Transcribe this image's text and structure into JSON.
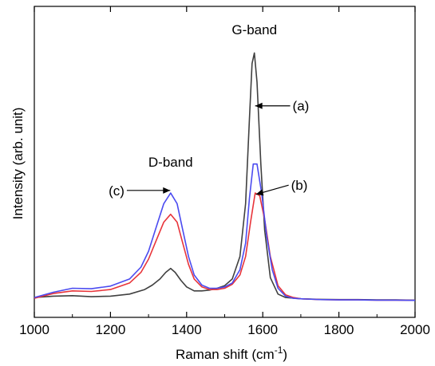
{
  "chart_data": {
    "type": "line",
    "title": "",
    "xlabel": "Raman shift (cm",
    "xlabel_sup": "-1",
    "xlabel_close": ")",
    "ylabel": "Intensity (arb. unit)",
    "xlim": [
      1000,
      2000
    ],
    "ylim": [
      0,
      1
    ],
    "xticks": [
      1000,
      1200,
      1400,
      1600,
      1800,
      2000
    ],
    "grid": false,
    "series": [
      {
        "label": "(a)",
        "color": "#404040",
        "x": [
          1000,
          1050,
          1100,
          1150,
          1200,
          1250,
          1290,
          1310,
          1330,
          1345,
          1358,
          1370,
          1385,
          1400,
          1420,
          1440,
          1460,
          1480,
          1500,
          1520,
          1540,
          1555,
          1565,
          1572,
          1578,
          1585,
          1595,
          1605,
          1620,
          1640,
          1660,
          1700,
          1750,
          1800,
          1850,
          1900,
          1950,
          2000
        ],
        "y": [
          0.045,
          0.05,
          0.052,
          0.048,
          0.05,
          0.058,
          0.075,
          0.092,
          0.115,
          0.14,
          0.155,
          0.14,
          0.11,
          0.085,
          0.07,
          0.07,
          0.073,
          0.08,
          0.09,
          0.115,
          0.2,
          0.4,
          0.72,
          0.93,
          0.97,
          0.86,
          0.55,
          0.3,
          0.12,
          0.058,
          0.045,
          0.04,
          0.038,
          0.037,
          0.037,
          0.036,
          0.036,
          0.035
        ]
      },
      {
        "label": "(b)",
        "color": "#e8343a",
        "x": [
          1000,
          1050,
          1100,
          1150,
          1200,
          1250,
          1280,
          1300,
          1320,
          1340,
          1358,
          1375,
          1390,
          1405,
          1420,
          1440,
          1460,
          1480,
          1500,
          1520,
          1540,
          1555,
          1568,
          1580,
          1592,
          1605,
          1620,
          1640,
          1660,
          1680,
          1700,
          1750,
          1800,
          1850,
          1900,
          1950,
          2000
        ],
        "y": [
          0.042,
          0.06,
          0.07,
          0.068,
          0.075,
          0.1,
          0.14,
          0.19,
          0.26,
          0.33,
          0.36,
          0.33,
          0.25,
          0.17,
          0.115,
          0.085,
          0.075,
          0.075,
          0.08,
          0.095,
          0.13,
          0.2,
          0.33,
          0.44,
          0.43,
          0.34,
          0.2,
          0.09,
          0.055,
          0.045,
          0.04,
          0.037,
          0.036,
          0.036,
          0.035,
          0.035,
          0.034
        ]
      },
      {
        "label": "(c)",
        "color": "#4b4bf0",
        "x": [
          1000,
          1050,
          1100,
          1150,
          1200,
          1250,
          1280,
          1300,
          1320,
          1340,
          1358,
          1375,
          1390,
          1405,
          1420,
          1440,
          1460,
          1480,
          1500,
          1520,
          1540,
          1555,
          1565,
          1575,
          1585,
          1597,
          1610,
          1625,
          1640,
          1660,
          1680,
          1700,
          1750,
          1800,
          1850,
          1900,
          1950,
          2000
        ],
        "y": [
          0.045,
          0.065,
          0.08,
          0.078,
          0.088,
          0.115,
          0.16,
          0.22,
          0.31,
          0.4,
          0.44,
          0.4,
          0.3,
          0.2,
          0.13,
          0.092,
          0.08,
          0.08,
          0.085,
          0.1,
          0.15,
          0.25,
          0.42,
          0.55,
          0.55,
          0.44,
          0.28,
          0.15,
          0.08,
          0.05,
          0.042,
          0.04,
          0.037,
          0.036,
          0.036,
          0.035,
          0.035,
          0.034
        ]
      }
    ],
    "annotations": [
      {
        "text": "G-band",
        "x": 1578,
        "y": 1.04
      },
      {
        "text": "D-band",
        "x": 1358,
        "y": 0.54
      },
      {
        "text": "(a)",
        "from": [
          1672,
          0.77
        ],
        "to": [
          1580,
          0.77
        ]
      },
      {
        "text": "(b)",
        "from": [
          1668,
          0.47
        ],
        "to": [
          1582,
          0.435
        ]
      },
      {
        "text": "(c)",
        "from": [
          1243,
          0.45
        ],
        "to": [
          1357,
          0.45
        ]
      }
    ]
  }
}
